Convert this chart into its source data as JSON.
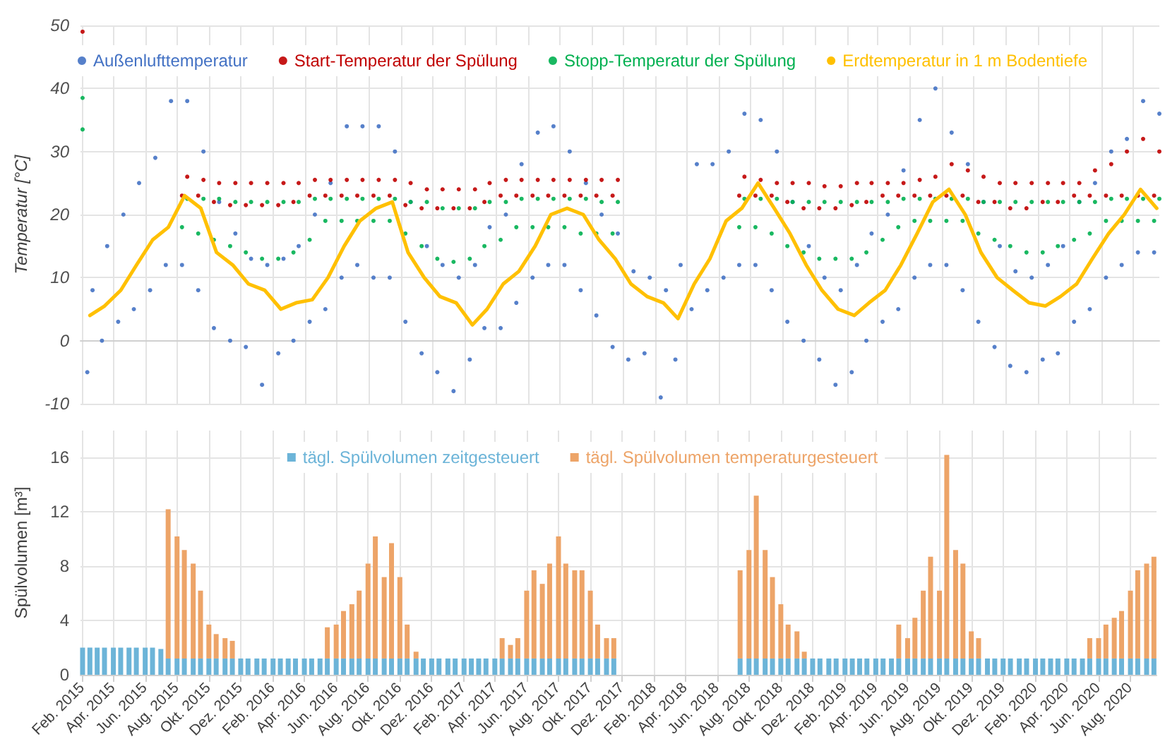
{
  "chart_data": [
    {
      "type": "scatter",
      "ylabel": "Temperatur [°C]",
      "ylim": [
        -10,
        50
      ],
      "yticks": [
        -10,
        0,
        10,
        20,
        30,
        40,
        50
      ],
      "xlim": [
        "2015-01-28",
        "2020-09-20"
      ],
      "xticks": [
        "2015-02",
        "2015-04",
        "2015-06",
        "2015-08",
        "2015-10",
        "2015-12",
        "2016-02",
        "2016-04",
        "2016-06",
        "2016-08",
        "2016-10",
        "2016-12",
        "2017-02",
        "2017-04",
        "2017-06",
        "2017-08",
        "2017-10",
        "2017-12",
        "2018-02",
        "2018-04",
        "2018-06",
        "2018-08",
        "2018-10",
        "2018-12",
        "2019-02",
        "2019-04",
        "2019-06",
        "2019-08",
        "2019-10",
        "2019-12",
        "2020-02",
        "2020-04",
        "2020-06",
        "2020-08"
      ],
      "tick_labels": "y",
      "grid": true,
      "legend": "top",
      "series": [
        {
          "name": "Außenlufttemperatur",
          "color": "#4472c4",
          "marker": "circle",
          "x": [
            "2015-02-10",
            "2015-02-20",
            "2015-03-10",
            "2015-03-20",
            "2015-04-10",
            "2015-04-20",
            "2015-05-10",
            "2015-05-20",
            "2015-06-10",
            "2015-06-20",
            "2015-07-10",
            "2015-07-20",
            "2015-08-10",
            "2015-08-20",
            "2015-09-10",
            "2015-09-20",
            "2015-10-10",
            "2015-10-20",
            "2015-11-10",
            "2015-11-20",
            "2015-12-10",
            "2015-12-20",
            "2016-01-10",
            "2016-01-20",
            "2016-02-10",
            "2016-02-20",
            "2016-03-10",
            "2016-03-20",
            "2016-04-10",
            "2016-04-20",
            "2016-05-10",
            "2016-05-20",
            "2016-06-10",
            "2016-06-20",
            "2016-07-10",
            "2016-07-20",
            "2016-08-10",
            "2016-08-20",
            "2016-09-10",
            "2016-09-20",
            "2016-10-10",
            "2016-10-20",
            "2016-11-10",
            "2016-11-20",
            "2016-12-10",
            "2016-12-20",
            "2017-01-10",
            "2017-01-20",
            "2017-02-10",
            "2017-02-20",
            "2017-03-10",
            "2017-03-20",
            "2017-04-10",
            "2017-04-20",
            "2017-05-10",
            "2017-05-20",
            "2017-06-10",
            "2017-06-20",
            "2017-07-10",
            "2017-07-20",
            "2017-08-10",
            "2017-08-20",
            "2017-09-10",
            "2017-09-20",
            "2017-10-10",
            "2017-10-20",
            "2017-11-10",
            "2017-11-20",
            "2017-12-10",
            "2017-12-20",
            "2018-01-10",
            "2018-01-20",
            "2018-02-10",
            "2018-02-20",
            "2018-03-10",
            "2018-03-20",
            "2018-04-10",
            "2018-04-20",
            "2018-05-10",
            "2018-05-20",
            "2018-06-10",
            "2018-06-20",
            "2018-07-10",
            "2018-07-20",
            "2018-08-10",
            "2018-08-20",
            "2018-09-10",
            "2018-09-20",
            "2018-10-10",
            "2018-10-20",
            "2018-11-10",
            "2018-11-20",
            "2018-12-10",
            "2018-12-20",
            "2019-01-10",
            "2019-01-20",
            "2019-02-10",
            "2019-02-20",
            "2019-03-10",
            "2019-03-20",
            "2019-04-10",
            "2019-04-20",
            "2019-05-10",
            "2019-05-20",
            "2019-06-10",
            "2019-06-20",
            "2019-07-10",
            "2019-07-20",
            "2019-08-10",
            "2019-08-20",
            "2019-09-10",
            "2019-09-20",
            "2019-10-10",
            "2019-10-20",
            "2019-11-10",
            "2019-11-20",
            "2019-12-10",
            "2019-12-20",
            "2020-01-10",
            "2020-01-20",
            "2020-02-10",
            "2020-02-20",
            "2020-03-10",
            "2020-03-20",
            "2020-04-10",
            "2020-04-20",
            "2020-05-10",
            "2020-05-20",
            "2020-06-10",
            "2020-06-20",
            "2020-07-10",
            "2020-07-20",
            "2020-08-10",
            "2020-08-20",
            "2020-09-10",
            "2020-09-20"
          ],
          "values": [
            -5,
            8,
            0,
            15,
            3,
            20,
            5,
            25,
            8,
            29,
            12,
            38,
            12,
            38,
            8,
            30,
            2,
            22,
            0,
            17,
            -1,
            13,
            -7,
            12,
            -2,
            13,
            0,
            15,
            3,
            20,
            5,
            25,
            10,
            34,
            12,
            34,
            10,
            34,
            10,
            30,
            3,
            22,
            -2,
            15,
            -5,
            12,
            -8,
            10,
            -3,
            12,
            2,
            18,
            2,
            20,
            6,
            28,
            10,
            33,
            12,
            34,
            12,
            30,
            8,
            25,
            4,
            20,
            -1,
            17,
            -3,
            11,
            -2,
            10,
            -9,
            8,
            -3,
            12,
            5,
            28,
            8,
            28,
            10,
            30,
            12,
            36,
            12,
            35,
            8,
            30,
            3,
            22,
            0,
            15,
            -3,
            10,
            -7,
            8,
            -5,
            12,
            0,
            17,
            3,
            20,
            5,
            27,
            10,
            35,
            12,
            40,
            12,
            33,
            8,
            28,
            3,
            22,
            -1,
            15,
            -4,
            11,
            -5,
            10,
            -3,
            12,
            -2,
            15,
            3,
            22,
            5,
            25,
            10,
            30,
            12,
            32,
            14,
            38,
            14,
            36
          ]
        },
        {
          "name": "Start-Temperatur der Spülung",
          "color": "#c00000",
          "marker": "circle",
          "x": [
            "2015-02-01",
            "2015-08-10",
            "2015-08-20",
            "2015-09-10",
            "2015-09-20",
            "2015-10-10",
            "2015-10-20",
            "2015-11-10",
            "2015-11-20",
            "2015-12-10",
            "2015-12-20",
            "2016-01-10",
            "2016-01-20",
            "2016-02-10",
            "2016-02-20",
            "2016-03-10",
            "2016-03-20",
            "2016-04-10",
            "2016-04-20",
            "2016-05-10",
            "2016-05-20",
            "2016-06-10",
            "2016-06-20",
            "2016-07-10",
            "2016-07-20",
            "2016-08-10",
            "2016-08-20",
            "2016-09-10",
            "2016-09-20",
            "2016-10-10",
            "2016-10-20",
            "2016-11-10",
            "2016-11-20",
            "2016-12-10",
            "2016-12-20",
            "2017-01-10",
            "2017-01-20",
            "2017-02-10",
            "2017-02-20",
            "2017-03-10",
            "2017-03-20",
            "2017-04-10",
            "2017-04-20",
            "2017-05-10",
            "2017-05-20",
            "2017-06-10",
            "2017-06-20",
            "2017-07-10",
            "2017-07-20",
            "2017-08-10",
            "2017-08-20",
            "2017-09-10",
            "2017-09-20",
            "2017-10-10",
            "2017-10-20",
            "2017-11-10",
            "2017-11-20",
            "2018-07-10",
            "2018-07-20",
            "2018-08-10",
            "2018-08-20",
            "2018-09-10",
            "2018-09-20",
            "2018-10-10",
            "2018-10-20",
            "2018-11-10",
            "2018-11-20",
            "2018-12-10",
            "2018-12-20",
            "2019-01-10",
            "2019-01-20",
            "2019-02-10",
            "2019-02-20",
            "2019-03-10",
            "2019-03-20",
            "2019-04-10",
            "2019-04-20",
            "2019-05-10",
            "2019-05-20",
            "2019-06-10",
            "2019-06-20",
            "2019-07-10",
            "2019-07-20",
            "2019-08-10",
            "2019-08-20",
            "2019-09-10",
            "2019-09-20",
            "2019-10-10",
            "2019-10-20",
            "2019-11-10",
            "2019-11-20",
            "2019-12-10",
            "2019-12-20",
            "2020-01-10",
            "2020-01-20",
            "2020-02-10",
            "2020-02-20",
            "2020-03-10",
            "2020-03-20",
            "2020-04-10",
            "2020-04-20",
            "2020-05-10",
            "2020-05-20",
            "2020-06-10",
            "2020-06-20",
            "2020-07-10",
            "2020-07-20",
            "2020-08-10",
            "2020-08-20",
            "2020-09-10",
            "2020-09-20"
          ],
          "values": [
            49,
            23,
            26,
            23,
            25.5,
            22,
            25,
            21.5,
            25,
            21.5,
            25,
            21.5,
            25,
            21.5,
            25,
            22,
            25,
            23,
            25.5,
            23,
            25.5,
            23,
            25.5,
            23,
            25.5,
            23,
            25.5,
            23,
            25.5,
            21.5,
            25,
            21,
            24,
            21,
            24,
            21,
            24,
            21,
            24,
            22,
            25,
            23,
            25.5,
            23,
            25.5,
            23,
            25.5,
            23,
            25.5,
            23,
            25.5,
            23,
            25.5,
            23,
            25.5,
            23,
            25.5,
            23,
            26,
            23,
            25.5,
            23,
            25,
            22,
            25,
            21,
            25,
            21,
            24.5,
            21,
            24.5,
            21.5,
            25,
            22,
            25,
            23,
            25,
            23,
            25,
            23,
            25.5,
            23,
            26,
            23,
            28,
            23,
            27,
            22,
            26,
            22,
            25,
            21,
            25,
            21,
            25,
            22,
            25,
            22,
            25,
            23,
            25,
            23,
            27,
            23,
            28,
            23,
            30,
            23,
            32,
            23,
            30
          ]
        },
        {
          "name": "Stopp-Temperatur der Spülung",
          "color": "#00b050",
          "marker": "circle",
          "x": [
            "2015-02-01",
            "2015-02-01",
            "2015-08-10",
            "2015-08-20",
            "2015-09-10",
            "2015-09-20",
            "2015-10-10",
            "2015-10-20",
            "2015-11-10",
            "2015-11-20",
            "2015-12-10",
            "2015-12-20",
            "2016-01-10",
            "2016-01-20",
            "2016-02-10",
            "2016-02-20",
            "2016-03-10",
            "2016-03-20",
            "2016-04-10",
            "2016-04-20",
            "2016-05-10",
            "2016-05-20",
            "2016-06-10",
            "2016-06-20",
            "2016-07-10",
            "2016-07-20",
            "2016-08-10",
            "2016-08-20",
            "2016-09-10",
            "2016-09-20",
            "2016-10-10",
            "2016-10-20",
            "2016-11-10",
            "2016-11-20",
            "2016-12-10",
            "2016-12-20",
            "2017-01-10",
            "2017-01-20",
            "2017-02-10",
            "2017-02-20",
            "2017-03-10",
            "2017-03-20",
            "2017-04-10",
            "2017-04-20",
            "2017-05-10",
            "2017-05-20",
            "2017-06-10",
            "2017-06-20",
            "2017-07-10",
            "2017-07-20",
            "2017-08-10",
            "2017-08-20",
            "2017-09-10",
            "2017-09-20",
            "2017-10-10",
            "2017-10-20",
            "2017-11-10",
            "2017-11-20",
            "2018-07-10",
            "2018-07-20",
            "2018-08-10",
            "2018-08-20",
            "2018-09-10",
            "2018-09-20",
            "2018-10-10",
            "2018-10-20",
            "2018-11-10",
            "2018-11-20",
            "2018-12-10",
            "2018-12-20",
            "2019-01-10",
            "2019-01-20",
            "2019-02-10",
            "2019-02-20",
            "2019-03-10",
            "2019-03-20",
            "2019-04-10",
            "2019-04-20",
            "2019-05-10",
            "2019-05-20",
            "2019-06-10",
            "2019-06-20",
            "2019-07-10",
            "2019-07-20",
            "2019-08-10",
            "2019-08-20",
            "2019-09-10",
            "2019-09-20",
            "2019-10-10",
            "2019-10-20",
            "2019-11-10",
            "2019-11-20",
            "2019-12-10",
            "2019-12-20",
            "2020-01-10",
            "2020-01-20",
            "2020-02-10",
            "2020-02-20",
            "2020-03-10",
            "2020-03-20",
            "2020-04-10",
            "2020-04-20",
            "2020-05-10",
            "2020-05-20",
            "2020-06-10",
            "2020-06-20",
            "2020-07-10",
            "2020-07-20",
            "2020-08-10",
            "2020-08-20",
            "2020-09-10",
            "2020-09-20"
          ],
          "values": [
            38.5,
            33.5,
            18,
            22.5,
            17,
            22.5,
            16,
            22.5,
            15,
            22,
            14,
            22,
            13,
            22,
            13,
            22,
            14,
            22,
            16,
            22.5,
            19,
            22.5,
            19,
            22.5,
            19,
            22.5,
            19,
            22.5,
            19,
            22.5,
            17,
            22,
            15,
            22,
            13,
            21,
            12.5,
            21,
            13,
            21,
            15,
            22,
            16,
            22,
            18,
            22.5,
            18,
            22.5,
            18,
            22.5,
            18,
            22.5,
            17,
            22.5,
            17,
            22,
            17,
            22,
            18,
            22.5,
            18,
            22.5,
            17,
            22.5,
            15,
            22,
            14,
            22,
            13,
            22,
            13,
            22,
            13,
            22,
            14,
            22,
            16,
            22,
            18,
            22.5,
            19,
            22.5,
            19,
            22.5,
            19,
            22.5,
            19,
            22.5,
            17,
            22,
            16,
            22,
            15,
            22,
            14,
            22,
            14,
            22,
            15,
            22,
            16,
            22,
            17,
            22,
            19,
            22.5,
            19,
            22.5,
            19,
            22.5,
            19,
            22.5
          ]
        },
        {
          "name": "Erdtemperatur in 1 m Bodentiefe",
          "type": "line",
          "color": "#ffc000",
          "marker": "none",
          "line_style": "solid",
          "x": [
            "2015-02-15",
            "2015-03-15",
            "2015-04-15",
            "2015-05-15",
            "2015-06-15",
            "2015-07-15",
            "2015-08-15",
            "2015-09-15",
            "2015-10-15",
            "2015-11-15",
            "2015-12-15",
            "2016-01-15",
            "2016-02-15",
            "2016-03-15",
            "2016-04-15",
            "2016-05-15",
            "2016-06-15",
            "2016-07-15",
            "2016-08-15",
            "2016-09-15",
            "2016-10-15",
            "2016-11-15",
            "2016-12-15",
            "2017-01-15",
            "2017-02-15",
            "2017-03-15",
            "2017-04-15",
            "2017-05-15",
            "2017-06-15",
            "2017-07-15",
            "2017-08-15",
            "2017-09-15",
            "2017-10-15",
            "2017-11-15",
            "2017-12-15",
            "2018-01-15",
            "2018-02-15",
            "2018-03-15",
            "2018-04-15",
            "2018-05-15",
            "2018-06-15",
            "2018-07-15",
            "2018-08-15",
            "2018-09-15",
            "2018-10-15",
            "2018-11-15",
            "2018-12-15",
            "2019-01-15",
            "2019-02-15",
            "2019-03-15",
            "2019-04-15",
            "2019-05-15",
            "2019-06-15",
            "2019-07-15",
            "2019-08-15",
            "2019-09-15",
            "2019-10-15",
            "2019-11-15",
            "2019-12-15",
            "2020-01-15",
            "2020-02-15",
            "2020-03-15",
            "2020-04-15",
            "2020-05-15",
            "2020-06-15",
            "2020-07-15",
            "2020-08-15",
            "2020-09-15"
          ],
          "values": [
            4,
            5.5,
            8,
            12,
            16,
            18,
            23,
            21,
            14,
            12,
            9,
            8,
            5,
            6,
            6.5,
            10,
            15,
            19,
            21,
            22,
            14,
            10,
            7,
            6,
            2.5,
            5,
            9,
            11,
            15,
            20,
            21,
            20,
            16,
            13,
            9,
            7,
            6,
            3.5,
            9,
            13,
            19,
            21,
            25,
            21,
            17,
            12,
            8,
            5,
            4,
            6,
            8,
            12,
            17,
            22,
            24,
            20,
            14,
            10,
            8,
            6,
            5.5,
            7,
            9,
            13,
            17,
            20,
            24,
            21
          ]
        }
      ]
    },
    {
      "type": "bar",
      "stacked": true,
      "ylabel": "Spülvolumen [m³]",
      "ylim": [
        0,
        18
      ],
      "yticks": [
        0,
        4,
        8,
        12,
        16
      ],
      "xlim": [
        "2015-01-28",
        "2020-09-20"
      ],
      "xticks": [
        {
          "value": "2015-02",
          "label": "Feb. 2015"
        },
        {
          "value": "2015-04",
          "label": "Apr. 2015"
        },
        {
          "value": "2015-06",
          "label": "Jun. 2015"
        },
        {
          "value": "2015-08",
          "label": "Aug. 2015"
        },
        {
          "value": "2015-10",
          "label": "Okt. 2015"
        },
        {
          "value": "2015-12",
          "label": "Dez. 2015"
        },
        {
          "value": "2016-02",
          "label": "Feb. 2016"
        },
        {
          "value": "2016-04",
          "label": "Apr. 2016"
        },
        {
          "value": "2016-06",
          "label": "Jun. 2016"
        },
        {
          "value": "2016-08",
          "label": "Aug. 2016"
        },
        {
          "value": "2016-10",
          "label": "Okt. 2016"
        },
        {
          "value": "2016-12",
          "label": "Dez. 2016"
        },
        {
          "value": "2017-02",
          "label": "Feb. 2017"
        },
        {
          "value": "2017-04",
          "label": "Apr. 2017"
        },
        {
          "value": "2017-06",
          "label": "Jun. 2017"
        },
        {
          "value": "2017-08",
          "label": "Aug. 2017"
        },
        {
          "value": "2017-10",
          "label": "Okt. 2017"
        },
        {
          "value": "2017-12",
          "label": "Dez. 2017"
        },
        {
          "value": "2018-02",
          "label": "Feb. 2018"
        },
        {
          "value": "2018-04",
          "label": "Apr. 2018"
        },
        {
          "value": "2018-06",
          "label": "Jun. 2018"
        },
        {
          "value": "2018-08",
          "label": "Aug. 2018"
        },
        {
          "value": "2018-10",
          "label": "Okt. 2018"
        },
        {
          "value": "2018-12",
          "label": "Dez. 2018"
        },
        {
          "value": "2019-02",
          "label": "Feb. 2019"
        },
        {
          "value": "2019-04",
          "label": "Apr. 2019"
        },
        {
          "value": "2019-06",
          "label": "Jun. 2019"
        },
        {
          "value": "2019-08",
          "label": "Aug. 2019"
        },
        {
          "value": "2019-10",
          "label": "Okt. 2019"
        },
        {
          "value": "2019-12",
          "label": "Dez. 2019"
        },
        {
          "value": "2020-02",
          "label": "Feb. 2020"
        },
        {
          "value": "2020-04",
          "label": "Apr. 2020"
        },
        {
          "value": "2020-06",
          "label": "Jun. 2020"
        },
        {
          "value": "2020-08",
          "label": "Aug. 2020"
        }
      ],
      "grid": true,
      "legend": "top",
      "x": [
        "2015-02-01",
        "2015-02-15",
        "2015-03-01",
        "2015-03-15",
        "2015-04-01",
        "2015-04-15",
        "2015-05-01",
        "2015-05-15",
        "2015-06-01",
        "2015-06-15",
        "2015-07-01",
        "2015-07-15",
        "2015-08-01",
        "2015-08-15",
        "2015-09-01",
        "2015-09-15",
        "2015-10-01",
        "2015-10-15",
        "2015-11-01",
        "2015-11-15",
        "2015-12-01",
        "2015-12-15",
        "2016-01-01",
        "2016-01-15",
        "2016-02-01",
        "2016-02-15",
        "2016-03-01",
        "2016-03-15",
        "2016-04-01",
        "2016-04-15",
        "2016-05-01",
        "2016-05-15",
        "2016-06-01",
        "2016-06-15",
        "2016-07-01",
        "2016-07-15",
        "2016-08-01",
        "2016-08-15",
        "2016-09-01",
        "2016-09-15",
        "2016-10-01",
        "2016-10-15",
        "2016-11-01",
        "2016-11-15",
        "2016-12-01",
        "2016-12-15",
        "2017-01-01",
        "2017-01-15",
        "2017-02-01",
        "2017-02-15",
        "2017-03-01",
        "2017-03-15",
        "2017-04-01",
        "2017-04-15",
        "2017-05-01",
        "2017-05-15",
        "2017-06-01",
        "2017-06-15",
        "2017-07-01",
        "2017-07-15",
        "2017-08-01",
        "2017-08-15",
        "2017-09-01",
        "2017-09-15",
        "2017-10-01",
        "2017-10-15",
        "2017-11-01",
        "2017-11-15",
        "2017-12-01",
        "2017-12-15",
        "2018-01-01",
        "2018-01-15",
        "2018-02-01",
        "2018-02-15",
        "2018-03-01",
        "2018-03-15",
        "2018-04-01",
        "2018-04-15",
        "2018-05-01",
        "2018-05-15",
        "2018-06-01",
        "2018-06-15",
        "2018-07-01",
        "2018-07-15",
        "2018-08-01",
        "2018-08-15",
        "2018-09-01",
        "2018-09-15",
        "2018-10-01",
        "2018-10-15",
        "2018-11-01",
        "2018-11-15",
        "2018-12-01",
        "2018-12-15",
        "2019-01-01",
        "2019-01-15",
        "2019-02-01",
        "2019-02-15",
        "2019-03-01",
        "2019-03-15",
        "2019-04-01",
        "2019-04-15",
        "2019-05-01",
        "2019-05-15",
        "2019-06-01",
        "2019-06-15",
        "2019-07-01",
        "2019-07-15",
        "2019-08-01",
        "2019-08-15",
        "2019-09-01",
        "2019-09-15",
        "2019-10-01",
        "2019-10-15",
        "2019-11-01",
        "2019-11-15",
        "2019-12-01",
        "2019-12-15",
        "2020-01-01",
        "2020-01-15",
        "2020-02-01",
        "2020-02-15",
        "2020-03-01",
        "2020-03-15",
        "2020-04-01",
        "2020-04-15",
        "2020-05-01",
        "2020-05-15",
        "2020-06-01",
        "2020-06-15",
        "2020-07-01",
        "2020-07-15",
        "2020-08-01",
        "2020-08-15",
        "2020-09-01",
        "2020-09-15"
      ],
      "series": [
        {
          "name": "tägl. Spülvolumen zeitgesteuert",
          "color": "#6cb4d8",
          "values": [
            2,
            2,
            2,
            2,
            2,
            2,
            2,
            2,
            2,
            2,
            1.9,
            1.2,
            1.2,
            1.2,
            1.2,
            1.2,
            1.2,
            1.2,
            1.2,
            1.2,
            1.2,
            1.2,
            1.2,
            1.2,
            1.2,
            1.2,
            1.2,
            1.2,
            1.2,
            1.2,
            1.2,
            1.2,
            1.2,
            1.2,
            1.2,
            1.2,
            1.2,
            1.2,
            1.2,
            1.2,
            1.2,
            1.2,
            1.2,
            1.2,
            1.2,
            1.2,
            1.2,
            1.2,
            1.2,
            1.2,
            1.2,
            1.2,
            1.2,
            1.2,
            1.2,
            1.2,
            1.2,
            1.2,
            1.2,
            1.2,
            1.2,
            1.2,
            1.2,
            1.2,
            1.2,
            1.2,
            1.2,
            1.2,
            null,
            null,
            null,
            null,
            null,
            null,
            null,
            null,
            null,
            null,
            null,
            null,
            null,
            null,
            null,
            1.2,
            1.2,
            1.2,
            1.2,
            1.2,
            1.2,
            1.2,
            1.2,
            1.2,
            1.2,
            1.2,
            1.2,
            1.2,
            1.2,
            1.2,
            1.2,
            1.2,
            1.2,
            1.2,
            1.2,
            1.2,
            1.2,
            1.2,
            1.2,
            1.2,
            1.2,
            1.2,
            1.2,
            1.2,
            1.2,
            1.2,
            1.2,
            1.2,
            1.2,
            1.2,
            1.2,
            1.2,
            1.2,
            1.2,
            1.2,
            1.2,
            1.2,
            1.2,
            1.2,
            1.2,
            1.2,
            1.2,
            1.2,
            1.2,
            1.2,
            1.2,
            1.2,
            1.2
          ]
        },
        {
          "name": "tägl. Spülvolumen temperaturgesteuert",
          "color": "#eda468",
          "values": [
            null,
            null,
            null,
            null,
            null,
            null,
            null,
            null,
            null,
            null,
            null,
            11,
            9,
            8,
            7,
            5,
            2.5,
            1.8,
            1.5,
            1.3,
            null,
            null,
            null,
            null,
            null,
            null,
            null,
            null,
            null,
            null,
            null,
            2.3,
            2.5,
            3.5,
            4,
            5,
            7,
            9,
            6,
            8.5,
            6,
            2.5,
            0.5,
            null,
            null,
            null,
            null,
            null,
            null,
            null,
            null,
            null,
            null,
            1.5,
            1,
            1.5,
            5,
            6.5,
            5.5,
            7,
            9,
            7,
            6.5,
            6.5,
            5,
            2.5,
            1.5,
            1.5,
            null,
            null,
            null,
            null,
            null,
            null,
            null,
            null,
            null,
            null,
            null,
            null,
            null,
            null,
            null,
            6.5,
            8,
            12,
            8,
            6,
            4,
            2.5,
            2,
            0.5,
            null,
            null,
            null,
            null,
            null,
            null,
            null,
            null,
            null,
            null,
            null,
            2.5,
            1.5,
            3,
            5,
            7.5,
            5,
            15,
            8,
            7,
            2,
            1.5,
            null,
            null,
            null,
            null,
            null,
            null,
            null,
            null,
            null,
            null,
            null,
            null,
            null,
            1.5,
            1.5,
            2.5,
            3,
            3.5,
            5,
            6.5,
            7,
            7.5
          ]
        }
      ]
    }
  ]
}
